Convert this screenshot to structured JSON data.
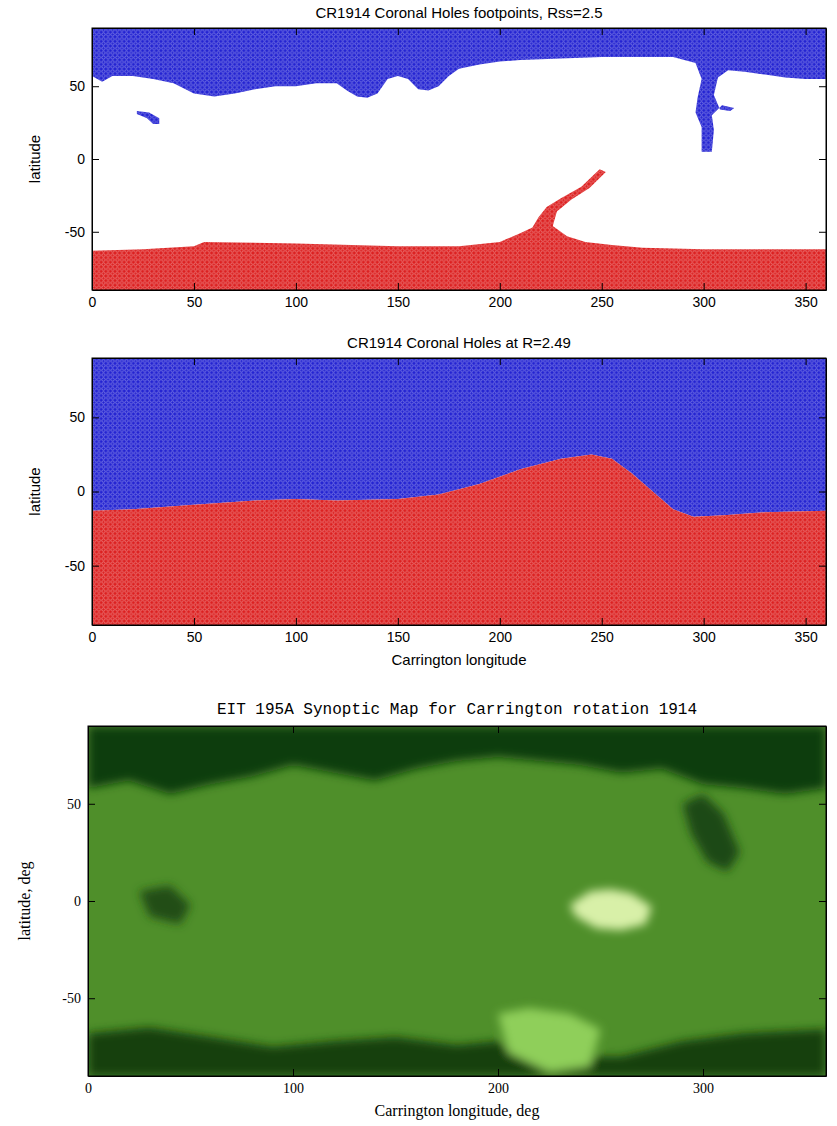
{
  "chart_data": [
    {
      "type": "map",
      "title": "CR1914 Coronal Holes footpoints, Rss=2.5",
      "ylabel": "latitude",
      "xlim": [
        0,
        360
      ],
      "ylim": [
        -90,
        90
      ],
      "xticks": [
        0,
        50,
        100,
        150,
        200,
        250,
        300,
        350
      ],
      "yticks": [
        -50,
        0,
        50
      ],
      "series": [
        {
          "color": "#2323d2",
          "x": [
            0,
            5,
            10,
            20,
            30,
            40,
            50,
            60,
            70,
            80,
            90,
            100,
            110,
            120,
            125,
            130,
            135,
            140,
            145,
            150,
            155,
            160,
            165,
            170,
            175,
            180,
            190,
            200,
            210,
            230,
            250,
            270,
            285,
            296,
            299,
            297,
            296,
            299,
            299,
            304,
            305,
            304,
            309,
            315,
            313,
            308,
            305,
            307,
            312,
            320,
            330,
            340,
            350,
            360,
            360,
            0
          ],
          "values": [
            57,
            53,
            57,
            57,
            55,
            52,
            45,
            43,
            45,
            48,
            50,
            50,
            52,
            52,
            47,
            43,
            42,
            45,
            55,
            57,
            55,
            48,
            47,
            50,
            57,
            62,
            65,
            67,
            68,
            69,
            70,
            70,
            70,
            66,
            55,
            42,
            32,
            22,
            5,
            5,
            20,
            30,
            37,
            35,
            33,
            34,
            44,
            56,
            61,
            60,
            58,
            56,
            55,
            55,
            90,
            90
          ]
        },
        {
          "color": "#2323d2",
          "x": [
            22,
            28,
            33,
            33,
            30,
            27,
            22
          ],
          "values": [
            33,
            32,
            28,
            24,
            24,
            28,
            31
          ]
        },
        {
          "color": "#dc2020",
          "x": [
            0,
            25,
            50,
            55,
            100,
            150,
            180,
            200,
            210,
            216,
            219,
            223,
            230,
            240,
            246,
            249,
            252,
            244,
            235,
            228,
            226,
            233,
            242,
            255,
            270,
            300,
            360,
            360,
            0
          ],
          "values": [
            -63,
            -62,
            -60,
            -57,
            -58,
            -60,
            -60,
            -57,
            -51,
            -47,
            -40,
            -33,
            -27,
            -19,
            -11,
            -7,
            -9,
            -20,
            -28,
            -36,
            -46,
            -53,
            -57,
            -59,
            -61,
            -62,
            -62,
            -90,
            -90
          ]
        }
      ]
    },
    {
      "type": "map",
      "title": "CR1914 Coronal Holes at R=2.49",
      "xlabel": "Carrington longitude",
      "ylabel": "latitude",
      "xlim": [
        0,
        360
      ],
      "ylim": [
        -90,
        90
      ],
      "xticks": [
        0,
        50,
        100,
        150,
        200,
        250,
        300,
        350
      ],
      "yticks": [
        -50,
        0,
        50
      ],
      "series": [
        {
          "color": "#2323d2",
          "x": [
            0,
            20,
            50,
            80,
            100,
            120,
            150,
            170,
            190,
            210,
            230,
            245,
            255,
            265,
            275,
            285,
            295,
            310,
            330,
            360,
            360,
            0
          ],
          "values": [
            -13,
            -12,
            -9,
            -6,
            -5,
            -6,
            -5,
            -2,
            5,
            15,
            22,
            25,
            22,
            12,
            0,
            -12,
            -17,
            -16,
            -14,
            -13,
            90,
            90
          ]
        },
        {
          "color": "#dc2020",
          "x": [
            0,
            20,
            50,
            80,
            100,
            120,
            150,
            170,
            190,
            210,
            230,
            245,
            255,
            265,
            275,
            285,
            295,
            310,
            330,
            360,
            360,
            0
          ],
          "values": [
            -13,
            -12,
            -9,
            -6,
            -5,
            -6,
            -5,
            -2,
            5,
            15,
            22,
            25,
            22,
            12,
            0,
            -12,
            -17,
            -16,
            -14,
            -13,
            -90,
            -90
          ]
        }
      ]
    },
    {
      "type": "image",
      "title": "EIT 195A Synoptic Map for Carrington rotation 1914",
      "xlabel": "Carrington longitude, deg",
      "ylabel": "latitude, deg",
      "color": "#4f8f2a",
      "xlim": [
        0,
        360
      ],
      "ylim": [
        -90,
        90
      ],
      "xticks": [
        0,
        100,
        200,
        300
      ],
      "yticks": [
        -50,
        0,
        50
      ],
      "series": [
        {
          "color": "#0f3d0c",
          "x": [
            0,
            20,
            40,
            60,
            80,
            100,
            120,
            140,
            160,
            180,
            200,
            220,
            240,
            260,
            280,
            300,
            320,
            340,
            360,
            360,
            0
          ],
          "values": [
            58,
            62,
            55,
            60,
            64,
            70,
            66,
            62,
            68,
            72,
            74,
            72,
            70,
            66,
            68,
            60,
            58,
            55,
            58,
            90,
            90
          ]
        },
        {
          "color": "#163f10",
          "x": [
            0,
            30,
            60,
            90,
            120,
            150,
            180,
            200,
            210,
            260,
            290,
            320,
            360,
            360,
            0
          ],
          "values": [
            -68,
            -65,
            -70,
            -75,
            -72,
            -70,
            -74,
            -72,
            -80,
            -80,
            -72,
            -68,
            -66,
            -90,
            -90
          ]
        },
        {
          "color": "#1c4a12",
          "x": [
            290,
            300,
            310,
            318,
            312,
            302,
            294
          ],
          "values": [
            50,
            55,
            45,
            25,
            15,
            20,
            35
          ]
        },
        {
          "color": "#234d16",
          "x": [
            25,
            40,
            50,
            45,
            30
          ],
          "values": [
            5,
            8,
            -2,
            -12,
            -8
          ]
        },
        {
          "color": "#8fcf5a",
          "x": [
            200,
            215,
            235,
            250,
            245,
            225,
            205
          ],
          "values": [
            -58,
            -55,
            -58,
            -66,
            -85,
            -88,
            -78
          ]
        },
        {
          "color": "#d8f0a8",
          "x": [
            235,
            245,
            255,
            265,
            275,
            272,
            260,
            248,
            238
          ],
          "values": [
            -2,
            5,
            6,
            4,
            -3,
            -12,
            -15,
            -14,
            -8
          ]
        }
      ]
    }
  ]
}
